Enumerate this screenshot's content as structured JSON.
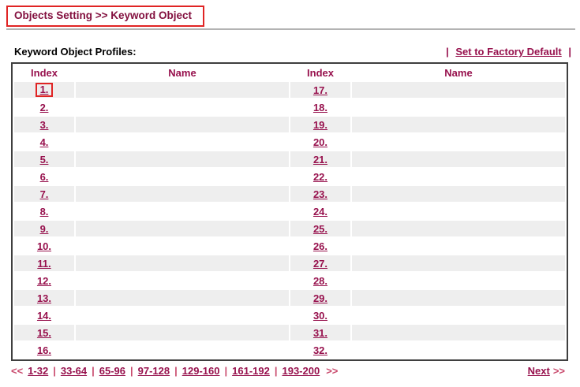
{
  "header": {
    "title": "Objects Setting >> Keyword Object",
    "annotated": true
  },
  "section": {
    "label": "Keyword Object Profiles:",
    "factory_default": "Set to Factory Default",
    "pipe": "|"
  },
  "table": {
    "headers": [
      "Index",
      "Name",
      "Index",
      "Name"
    ],
    "rows": [
      {
        "left_index": "1.",
        "left_name": "",
        "right_index": "17.",
        "right_name": "",
        "highlighted": true
      },
      {
        "left_index": "2.",
        "left_name": "",
        "right_index": "18.",
        "right_name": "",
        "highlighted": false
      },
      {
        "left_index": "3.",
        "left_name": "",
        "right_index": "19.",
        "right_name": "",
        "highlighted": false
      },
      {
        "left_index": "4.",
        "left_name": "",
        "right_index": "20.",
        "right_name": "",
        "highlighted": false
      },
      {
        "left_index": "5.",
        "left_name": "",
        "right_index": "21.",
        "right_name": "",
        "highlighted": false
      },
      {
        "left_index": "6.",
        "left_name": "",
        "right_index": "22.",
        "right_name": "",
        "highlighted": false
      },
      {
        "left_index": "7.",
        "left_name": "",
        "right_index": "23.",
        "right_name": "",
        "highlighted": false
      },
      {
        "left_index": "8.",
        "left_name": "",
        "right_index": "24.",
        "right_name": "",
        "highlighted": false
      },
      {
        "left_index": "9.",
        "left_name": "",
        "right_index": "25.",
        "right_name": "",
        "highlighted": false
      },
      {
        "left_index": "10.",
        "left_name": "",
        "right_index": "26.",
        "right_name": "",
        "highlighted": false
      },
      {
        "left_index": "11.",
        "left_name": "",
        "right_index": "27.",
        "right_name": "",
        "highlighted": false
      },
      {
        "left_index": "12.",
        "left_name": "",
        "right_index": "28.",
        "right_name": "",
        "highlighted": false
      },
      {
        "left_index": "13.",
        "left_name": "",
        "right_index": "29.",
        "right_name": "",
        "highlighted": false
      },
      {
        "left_index": "14.",
        "left_name": "",
        "right_index": "30.",
        "right_name": "",
        "highlighted": false
      },
      {
        "left_index": "15.",
        "left_name": "",
        "right_index": "31.",
        "right_name": "",
        "highlighted": false
      },
      {
        "left_index": "16.",
        "left_name": "",
        "right_index": "32.",
        "right_name": "",
        "highlighted": false
      }
    ]
  },
  "pagination": {
    "prev_symbol": "<<",
    "separator": "|",
    "pages": [
      "1-32",
      "33-64",
      "65-96",
      "97-128",
      "129-160",
      "161-192",
      "193-200"
    ],
    "next_symbol": ">>",
    "next_label": "Next"
  },
  "colors": {
    "accent": "#83103f",
    "link": "#97114d",
    "symbol": "#c94a6d",
    "annotation": "#e02424",
    "row_gray": "#eeeeee",
    "table_border": "#3f3f3f",
    "rule": "#b3b3b3"
  }
}
